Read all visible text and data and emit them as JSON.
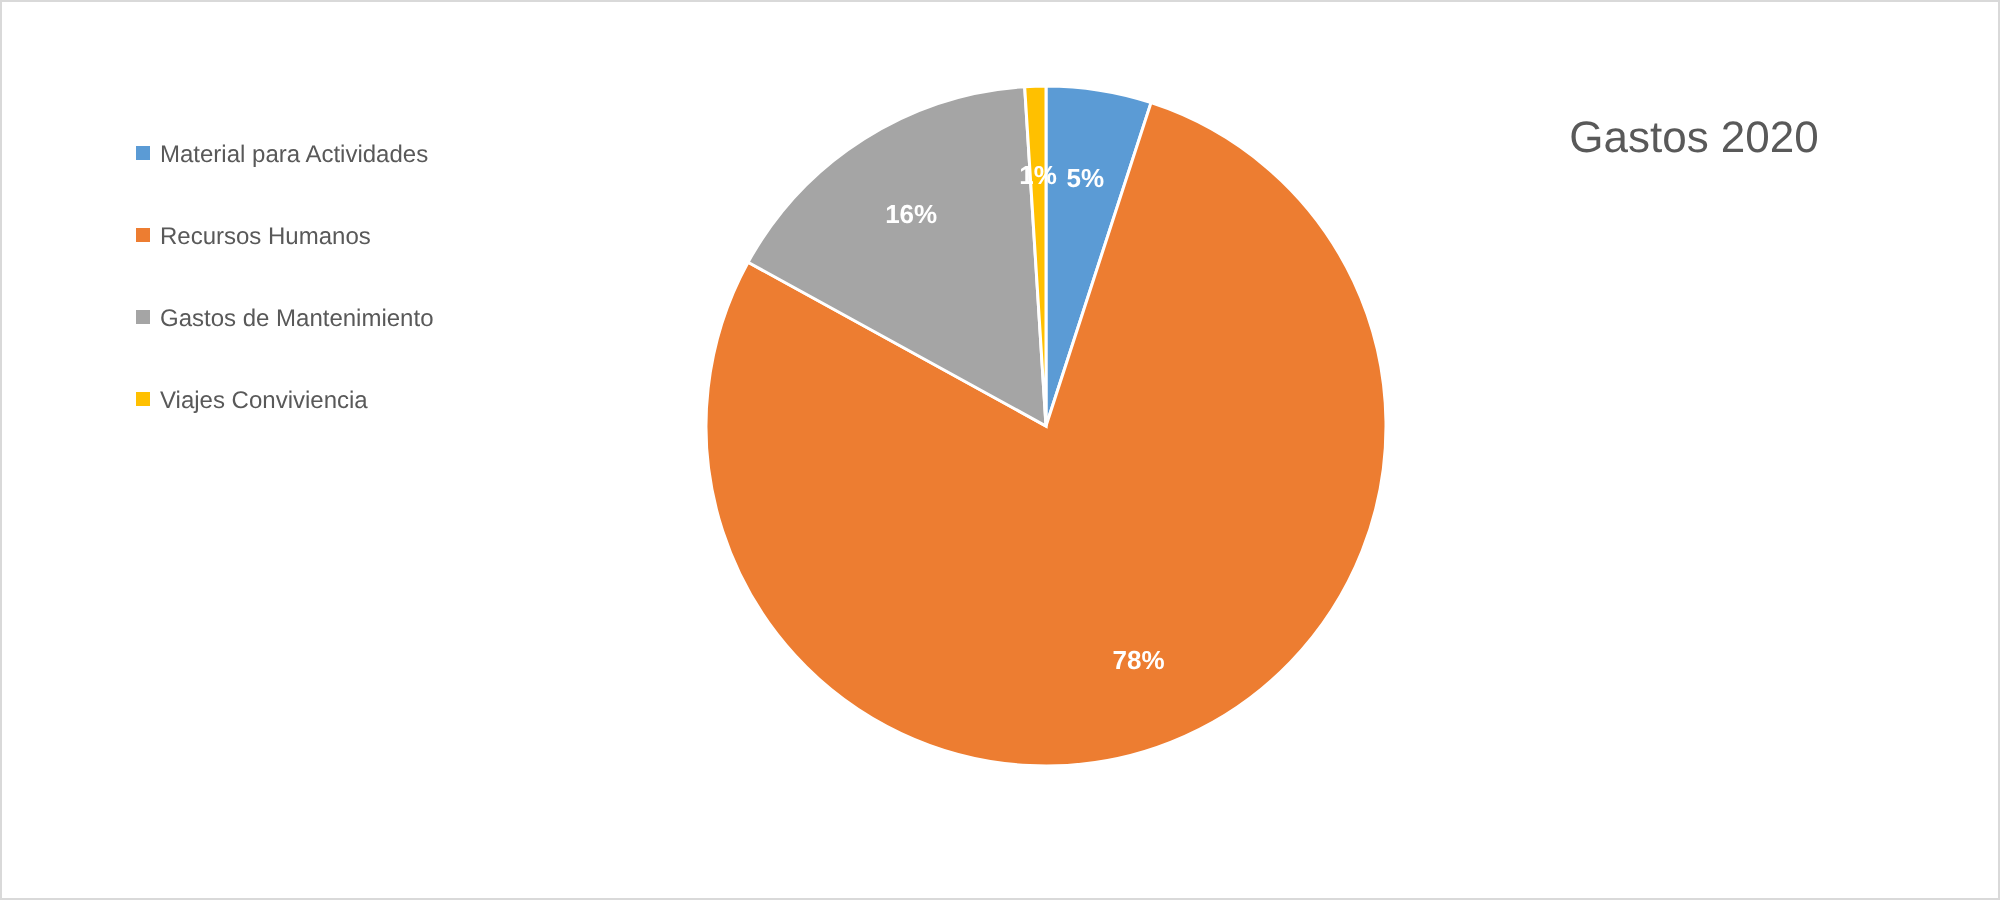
{
  "chart_data": {
    "type": "pie",
    "title": "Gastos 2020",
    "categories": [
      "Material para Actividades",
      "Recursos Humanos",
      "Gastos de Mantenimiento",
      "Viajes Conviviencia"
    ],
    "values": [
      5,
      78,
      16,
      1
    ],
    "colors": [
      "#5b9bd5",
      "#ed7d31",
      "#a5a5a5",
      "#ffc000"
    ],
    "value_labels": [
      "5%",
      "78%",
      "16%",
      "1%"
    ],
    "legend": "left"
  }
}
